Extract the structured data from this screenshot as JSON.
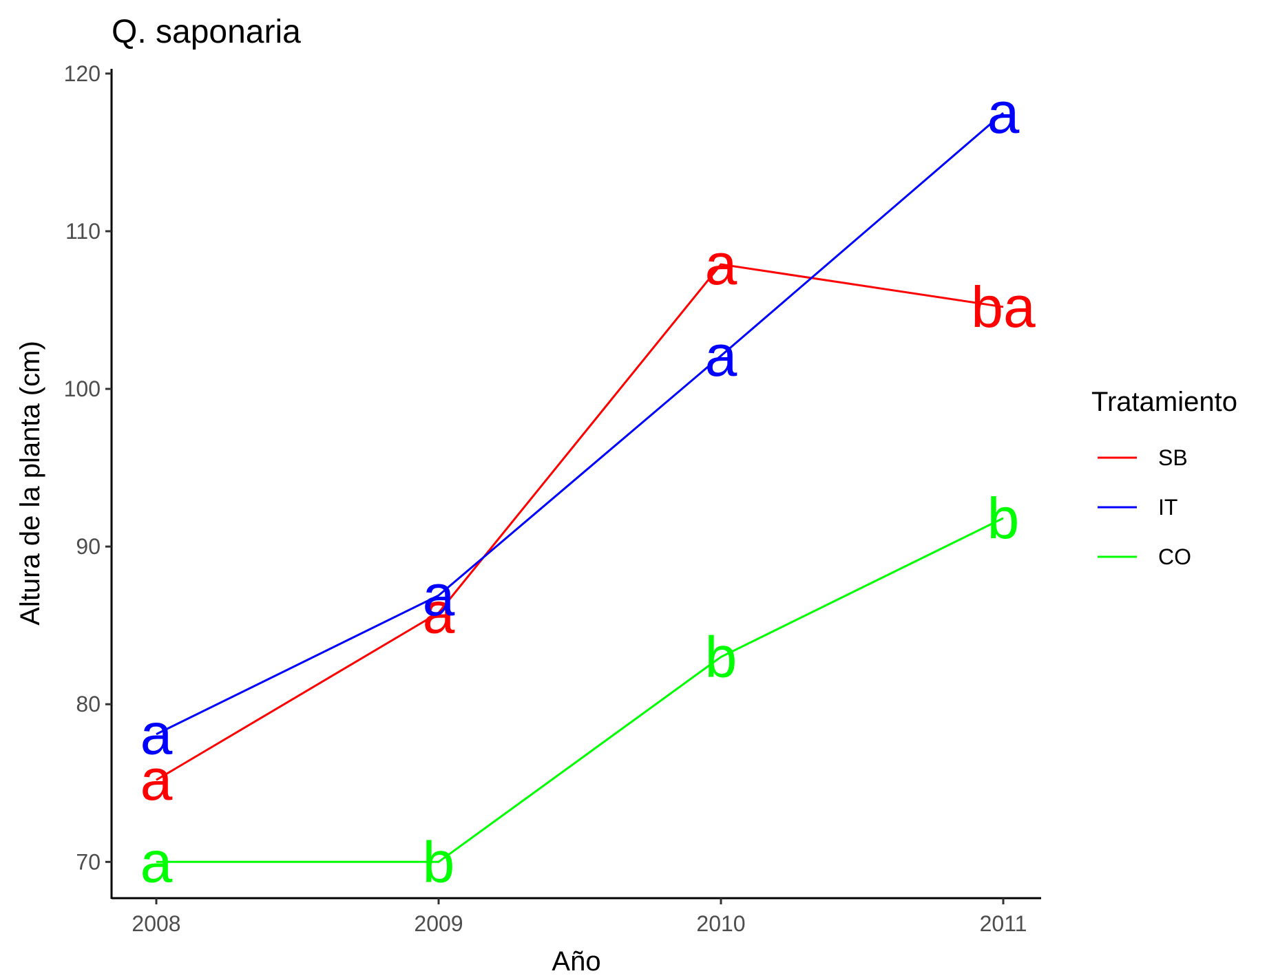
{
  "chart_data": {
    "type": "line",
    "title": "Q. saponaria",
    "xlabel": "Año",
    "ylabel": "Altura de la planta (cm)",
    "x": [
      "2008",
      "2009",
      "2010",
      "2011"
    ],
    "ylim": [
      67.7,
      120.3
    ],
    "yticks": [
      70,
      80,
      90,
      100,
      110,
      120
    ],
    "ytick_labels": [
      "70",
      "80",
      "90",
      "100",
      "110",
      "120"
    ],
    "grid": false,
    "legend": {
      "title": "Tratamiento",
      "position": "right"
    },
    "series": [
      {
        "name": "SB",
        "color": "#ff0000",
        "values": [
          75.2,
          85.8,
          107.9,
          105.2
        ],
        "labels": [
          "a",
          "a",
          "a",
          "ba"
        ]
      },
      {
        "name": "IT",
        "color": "#0000ff",
        "values": [
          78.1,
          86.9,
          102.1,
          117.5
        ],
        "labels": [
          "a",
          "a",
          "a",
          "a"
        ]
      },
      {
        "name": "CO",
        "color": "#00ff00",
        "values": [
          70.0,
          70.0,
          83.0,
          91.8
        ],
        "labels": [
          "a",
          "b",
          "b",
          "b"
        ]
      }
    ]
  }
}
